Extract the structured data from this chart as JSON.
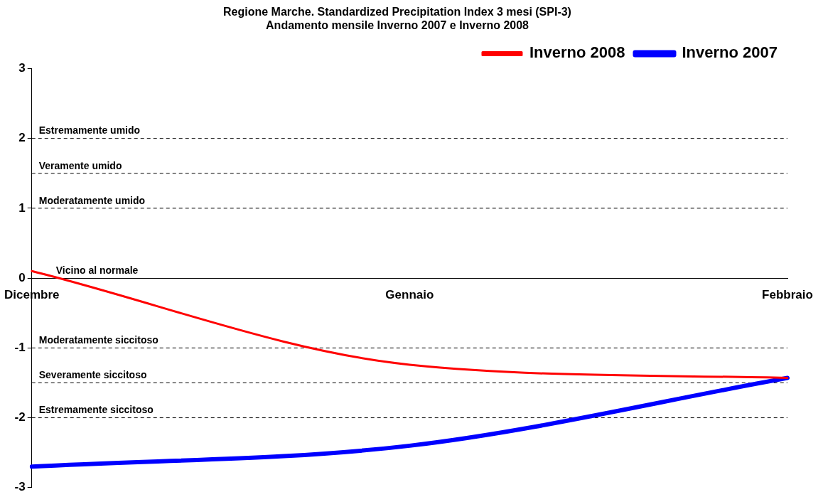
{
  "chart_data": {
    "type": "line",
    "title": "Regione Marche. Standardized Precipitation Index 3 mesi (SPI-3)",
    "subtitle": "Andamento mensile Inverno 2007 e Inverno 2008",
    "categories": [
      "Dicembre",
      "Gennaio",
      "Febbraio"
    ],
    "series": [
      {
        "name": "Inverno 2007",
        "color": "#0000ff",
        "values": [
          -2.7,
          -2.4,
          -1.43
        ]
      },
      {
        "name": "Inverno 2008",
        "color": "#ff0000",
        "values": [
          0.1,
          -1.24,
          -1.43
        ]
      }
    ],
    "ylim": [
      -3,
      3
    ],
    "yticks": [
      -3,
      -2,
      -1,
      0,
      1,
      2,
      3
    ],
    "ref_lines": [
      {
        "axis": "y",
        "value": 2,
        "label": "Estremamente umido",
        "color": "#000000",
        "line_style": "dashed"
      },
      {
        "axis": "y",
        "value": 1.5,
        "label": "Veramente umido",
        "color": "#000000",
        "line_style": "dashed"
      },
      {
        "axis": "y",
        "value": 1,
        "label": "Moderatamente umido",
        "color": "#000000",
        "line_style": "dashed"
      },
      {
        "axis": "y",
        "value": -1,
        "label": "Moderatamente siccitoso",
        "color": "#000000",
        "line_style": "dashed"
      },
      {
        "axis": "y",
        "value": -1.5,
        "label": "Severamente siccitoso",
        "color": "#000000",
        "line_style": "dashed"
      },
      {
        "axis": "y",
        "value": -2,
        "label": "Estremamente siccitoso",
        "color": "#000000",
        "line_style": "dashed"
      }
    ],
    "annotations": [
      "Vicino al normale"
    ],
    "grid": false,
    "legend": "top right",
    "marker": "none",
    "line_style": "solid"
  }
}
